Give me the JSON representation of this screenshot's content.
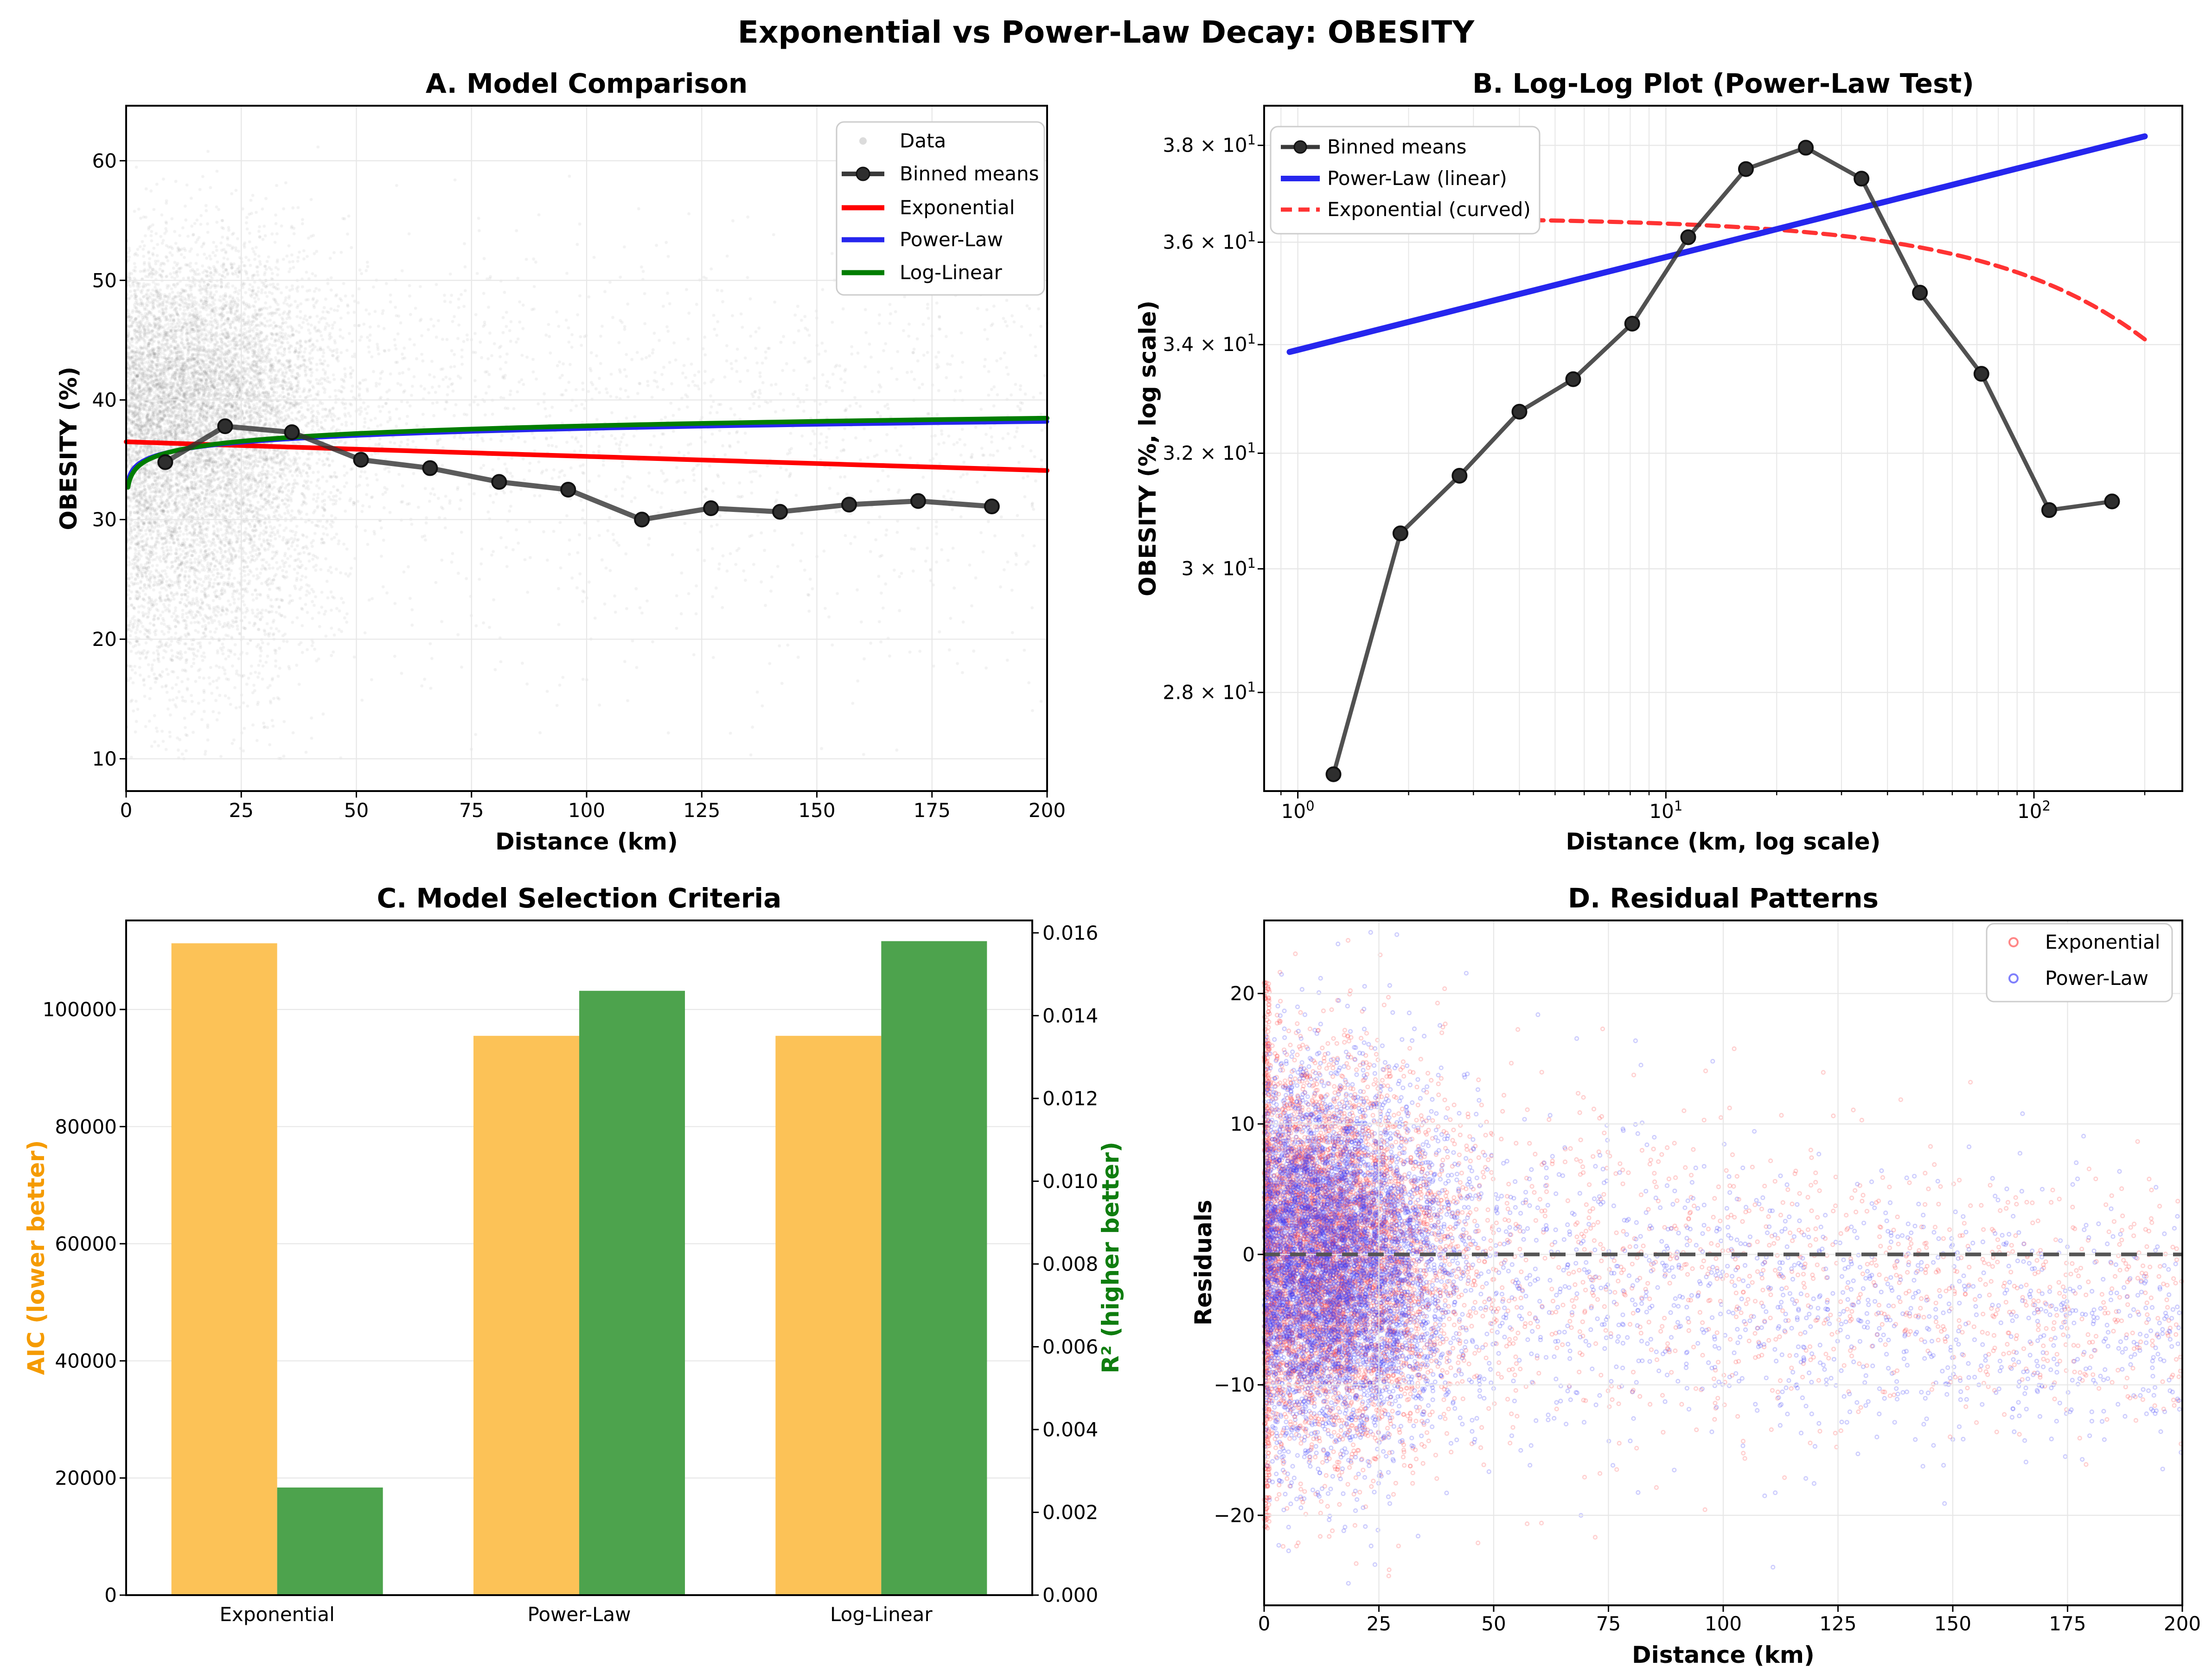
{
  "figure": {
    "title": "Exponential vs Power-Law Decay: OBESITY"
  },
  "colors": {
    "binned": "#3a3a3a",
    "exponential_red": "#ff0000",
    "power_law_blue": "#2626ee",
    "log_linear_green": "#007d00",
    "aic_orange_bar": "#fcc257",
    "aic_orange_text": "#f59b00",
    "r2_green_bar": "#4da34d",
    "r2_green_text": "#0f7d0f",
    "scatter_gray": "rgba(110,110,110,0.085)",
    "residual_red": "rgba(255,70,70,0.30)",
    "residual_blue": "rgba(60,60,250,0.30)",
    "grid": "#e7e7e7",
    "zero_line": "#555555"
  },
  "chart_data": {
    "panelA": {
      "type": "scatter+line",
      "title": "A. Model Comparison",
      "xlabel": "Distance (km)",
      "ylabel": "OBESITY (%)",
      "xlim": [
        0,
        200
      ],
      "ylim": [
        7.3,
        64.6
      ],
      "xticks": [
        0,
        25,
        50,
        75,
        100,
        125,
        150,
        175,
        200
      ],
      "yticks": [
        10,
        20,
        30,
        40,
        50,
        60
      ],
      "binned_means": {
        "x": [
          8.5,
          21.5,
          36,
          51,
          66,
          81,
          96,
          112,
          127,
          142,
          157,
          172,
          188
        ],
        "y": [
          34.8,
          37.8,
          37.3,
          35.0,
          34.3,
          33.15,
          32.5,
          30.0,
          30.95,
          30.65,
          31.25,
          31.55,
          31.1
        ]
      },
      "fits": {
        "exponential": {
          "A": 36.5,
          "k": 0.00034,
          "x_start": 0.001,
          "x_end": 200
        },
        "power_law": {
          "A": 33.9,
          "p": 0.0225,
          "x_start": 0.32,
          "x_end": 200
        },
        "log_linear": {
          "a": 33.55,
          "b": 0.93,
          "x_start": 0.4,
          "x_end": 200
        }
      },
      "scatter_cloud": {
        "n": 12000,
        "description": "light gray raw data points, dense for x < 50 centred near (16, 40), sparse tail to x = 200, y range about 10-60"
      },
      "legend": {
        "title": "Data",
        "items": [
          "Binned means",
          "Exponential",
          "Power-Law",
          "Log-Linear"
        ]
      }
    },
    "panelB": {
      "type": "line-log-log",
      "title": "B. Log-Log Plot (Power-Law Test)",
      "xlabel": "Distance (km, log scale)",
      "ylabel": "OBESITY (%, log scale)",
      "xlim": [
        0.81,
        253
      ],
      "ylim": [
        26.5,
        38.85
      ],
      "xticks": [
        {
          "v": 1,
          "base": "10",
          "sup": "0"
        },
        {
          "v": 10,
          "base": "10",
          "sup": "1"
        },
        {
          "v": 100,
          "base": "10",
          "sup": "2"
        }
      ],
      "xminor": [
        0.9,
        2,
        3,
        4,
        5,
        6,
        7,
        8,
        9,
        20,
        30,
        40,
        50,
        60,
        70,
        80,
        90,
        200
      ],
      "yticks": [
        {
          "v": 38,
          "base": "3.8 × 10",
          "sup": "1"
        },
        {
          "v": 36,
          "base": "3.6 × 10",
          "sup": "1"
        },
        {
          "v": 34,
          "base": "3.4 × 10",
          "sup": "1"
        },
        {
          "v": 32,
          "base": "3.2 × 10",
          "sup": "1"
        },
        {
          "v": 30,
          "base": "3 × 10",
          "sup": "1"
        },
        {
          "v": 28,
          "base": "2.8 × 10",
          "sup": "1"
        }
      ],
      "binned_means": {
        "x": [
          1.25,
          1.9,
          2.75,
          4.0,
          5.6,
          8.1,
          11.5,
          16.5,
          24,
          34,
          49,
          72,
          110,
          163
        ],
        "y": [
          26.75,
          30.6,
          31.6,
          32.75,
          33.35,
          34.4,
          36.1,
          37.5,
          37.95,
          37.3,
          35.0,
          33.45,
          31.0,
          31.15
        ]
      },
      "power_law_line": {
        "A": 33.9,
        "p": 0.0225,
        "x_start": 0.95,
        "x_end": 200
      },
      "exponential_curve": {
        "A": 36.5,
        "k": 0.00034,
        "x_start": 1.0,
        "x_end": 200
      },
      "legend": {
        "items": [
          "Binned means",
          "Power-Law (linear)",
          "Exponential (curved)"
        ]
      }
    },
    "panelC": {
      "type": "bar-dual-axis",
      "title": "C. Model Selection Criteria",
      "categories": [
        "Exponential",
        "Power-Law",
        "Log-Linear"
      ],
      "aic": {
        "axis_label": "AIC (lower better)",
        "values": [
          111300,
          95500,
          95500
        ],
        "ticks": [
          0,
          20000,
          40000,
          60000,
          80000,
          100000
        ],
        "ylim": [
          0,
          115200
        ]
      },
      "r2": {
        "axis_label": "R² (higher better)",
        "values": [
          0.0026,
          0.0146,
          0.0158
        ],
        "ticks": [
          0,
          0.002,
          0.004,
          0.006,
          0.008,
          0.01,
          0.012,
          0.014,
          0.016
        ],
        "ylim": [
          0,
          0.0163
        ]
      }
    },
    "panelD": {
      "type": "scatter",
      "title": "D. Residual Patterns",
      "xlabel": "Distance (km)",
      "ylabel": "Residuals",
      "xlim": [
        0,
        200
      ],
      "ylim": [
        -26.9,
        25.6
      ],
      "xticks": [
        0,
        25,
        50,
        75,
        100,
        125,
        150,
        175,
        200
      ],
      "yticks": [
        -20,
        -10,
        0,
        10,
        20
      ],
      "zero_line": 0,
      "series": [
        {
          "name": "Exponential",
          "n": 6500,
          "description": "red residual cloud, dense for x < 50, spread about ±20 shrinking with distance"
        },
        {
          "name": "Power-Law",
          "n": 7000,
          "description": "blue residual cloud overlapping the red one, slightly lower at large distance"
        }
      ]
    }
  }
}
